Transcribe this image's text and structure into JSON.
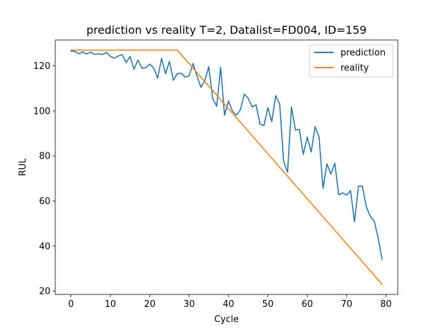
{
  "chart_data": {
    "type": "line",
    "title": "prediction vs reality T=2, Datalist=FD004, ID=159",
    "xlabel": "Cycle",
    "ylabel": "RUL",
    "xlim": [
      -4,
      83
    ],
    "ylim": [
      18.5,
      131.5
    ],
    "xticks": [
      0,
      10,
      20,
      30,
      40,
      50,
      60,
      70,
      80
    ],
    "yticks": [
      20,
      40,
      60,
      80,
      100,
      120
    ],
    "grid": false,
    "legend_position": "top-right",
    "series": [
      {
        "name": "prediction",
        "color": "#1f77b4",
        "x": [
          0,
          1,
          2,
          3,
          4,
          5,
          6,
          7,
          8,
          9,
          10,
          11,
          12,
          13,
          14,
          15,
          16,
          17,
          18,
          19,
          20,
          21,
          22,
          23,
          24,
          25,
          26,
          27,
          28,
          29,
          30,
          31,
          32,
          33,
          34,
          35,
          36,
          37,
          38,
          39,
          40,
          41,
          42,
          43,
          44,
          45,
          46,
          47,
          48,
          49,
          50,
          51,
          52,
          53,
          54,
          55,
          56,
          57,
          58,
          59,
          60,
          61,
          62,
          63,
          64,
          65,
          66,
          67,
          68,
          69,
          70,
          71,
          72,
          73,
          74,
          75,
          76,
          77,
          78,
          79
        ],
        "y": [
          126.6,
          126.4,
          125.4,
          126.2,
          125.3,
          126.1,
          125.1,
          125.4,
          125.0,
          126.0,
          124.2,
          123.4,
          124.4,
          125.0,
          121.5,
          124.2,
          118.5,
          122.6,
          119.0,
          119.2,
          120.8,
          119.1,
          114.5,
          123.3,
          116.5,
          122.0,
          113.6,
          116.6,
          116.7,
          115.0,
          115.6,
          121.1,
          115.5,
          110.5,
          113.6,
          119.6,
          105.4,
          102.1,
          119.4,
          98.1,
          104.4,
          100.0,
          98.1,
          100.4,
          107.4,
          105.6,
          101.8,
          102.7,
          94.2,
          93.5,
          101.5,
          95.2,
          106.8,
          103.1,
          77.6,
          72.8,
          101.8,
          91.6,
          91.8,
          80.7,
          88.4,
          81.8,
          93.0,
          88.4,
          65.6,
          76.5,
          72.0,
          76.8,
          62.8,
          63.6,
          62.6,
          64.6,
          50.8,
          66.6,
          66.6,
          57.4,
          53.2,
          51.2,
          43.7,
          34.1
        ]
      },
      {
        "name": "reality",
        "color": "#ff7f0e",
        "x": [
          0,
          27,
          79
        ],
        "y": [
          127,
          127,
          23
        ]
      }
    ]
  }
}
